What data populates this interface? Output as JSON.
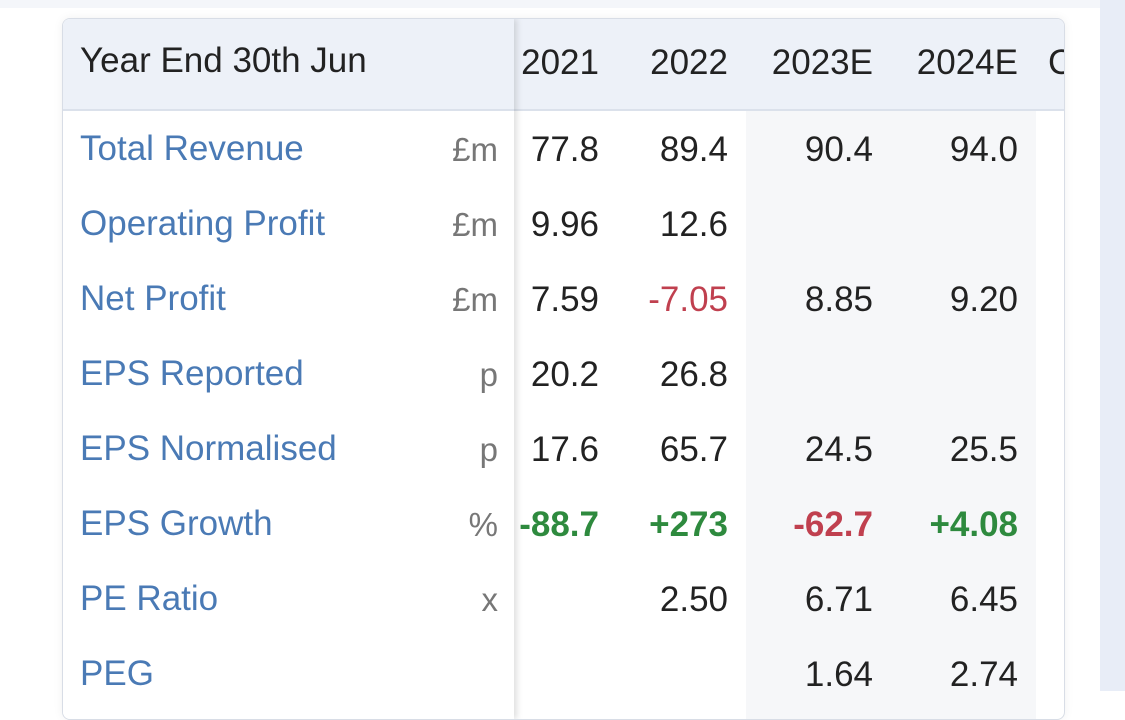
{
  "table": {
    "header_label": "Year End 30th Jun",
    "years": [
      "2021",
      "2022",
      "2023E",
      "2024E",
      "C"
    ],
    "rows": [
      {
        "label": "Total Revenue",
        "unit": "£m",
        "values": [
          "77.8",
          "89.4",
          "90.4",
          "94.0"
        ],
        "styles": [
          "",
          "",
          "",
          ""
        ]
      },
      {
        "label": "Operating Profit",
        "unit": "£m",
        "values": [
          "9.96",
          "12.6",
          "",
          ""
        ],
        "styles": [
          "",
          "",
          "",
          ""
        ]
      },
      {
        "label": "Net Profit",
        "unit": "£m",
        "values": [
          "7.59",
          "-7.05",
          "8.85",
          "9.20"
        ],
        "styles": [
          "",
          "neg",
          "",
          ""
        ]
      },
      {
        "label": "EPS Reported",
        "unit": "p",
        "values": [
          "20.2",
          "26.8",
          "",
          ""
        ],
        "styles": [
          "",
          "",
          "",
          ""
        ]
      },
      {
        "label": "EPS Normalised",
        "unit": "p",
        "values": [
          "17.6",
          "65.7",
          "24.5",
          "25.5"
        ],
        "styles": [
          "",
          "",
          "",
          ""
        ]
      },
      {
        "label": "EPS Growth",
        "unit": "%",
        "values": [
          "-88.7",
          "+273",
          "-62.7",
          "+4.08"
        ],
        "styles": [
          "pos",
          "pos",
          "negb",
          "pos"
        ]
      },
      {
        "label": "PE Ratio",
        "unit": "x",
        "values": [
          "",
          "2.50",
          "6.71",
          "6.45"
        ],
        "styles": [
          "",
          "",
          "",
          ""
        ]
      },
      {
        "label": "PEG",
        "unit": "",
        "values": [
          "",
          "",
          "1.64",
          "2.74"
        ],
        "styles": [
          "",
          "",
          "",
          ""
        ]
      }
    ]
  },
  "colors": {
    "label_link": "#4a7ab5",
    "negative": "#c0404f",
    "positive": "#2e8a3e",
    "header_bg": "#edf1f8"
  }
}
